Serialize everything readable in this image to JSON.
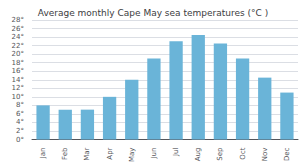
{
  "chart_data": {
    "type": "bar",
    "title": "Average monthly Cape May sea temperatures (°C )",
    "categories": [
      "Jan",
      "Feb",
      "Mar",
      "Apr",
      "May",
      "Jun",
      "Jul",
      "Aug",
      "Sep",
      "Oct",
      "Nov",
      "Dec"
    ],
    "values": [
      8,
      7,
      7,
      10,
      14,
      19,
      23,
      24.5,
      22.5,
      19,
      14.5,
      11
    ],
    "color": "#6ab4d8",
    "ylim": [
      0,
      28
    ],
    "yticks": [
      {
        "value": 0,
        "label": "0°"
      },
      {
        "value": 2,
        "label": "2°"
      },
      {
        "value": 4,
        "label": "4°"
      },
      {
        "value": 6,
        "label": "6°"
      },
      {
        "value": 8,
        "label": "8°"
      },
      {
        "value": 10,
        "label": "10°"
      },
      {
        "value": 12,
        "label": "12°"
      },
      {
        "value": 14,
        "label": "14°"
      },
      {
        "value": 16,
        "label": "16°"
      },
      {
        "value": 18,
        "label": "18°"
      },
      {
        "value": 20,
        "label": "20°"
      },
      {
        "value": 22,
        "label": "22°"
      },
      {
        "value": 24,
        "label": "24°"
      },
      {
        "value": 26,
        "label": "26°"
      },
      {
        "value": 28,
        "label": "28°"
      }
    ],
    "grid": true
  }
}
